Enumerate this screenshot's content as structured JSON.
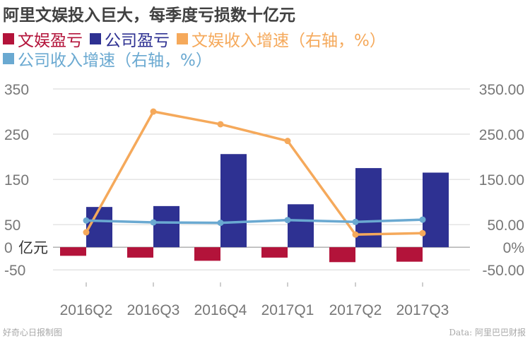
{
  "title": "阿里文娱投入巨大，每季度亏损数十亿元",
  "footer": {
    "credit": "好奇心日报制图",
    "source": "Data: 阿里巴巴财报"
  },
  "colors": {
    "wenyu_loss": "#b3133a",
    "company_loss": "#2e3192",
    "wenyu_growth": "#f5a95b",
    "company_growth": "#6aa9d1",
    "grid": "#d6d6d6",
    "tick_text": "#777777"
  },
  "chart_data": {
    "type": "bar",
    "categories": [
      "2016Q2",
      "2016Q3",
      "2016Q4",
      "2017Q1",
      "2017Q2",
      "2017Q3"
    ],
    "series": [
      {
        "name": "文娱盈亏",
        "kind": "bar",
        "axis": "left",
        "color": "#b3133a",
        "values": [
          -19,
          -23,
          -30,
          -23,
          -33,
          -32
        ]
      },
      {
        "name": "公司盈亏",
        "kind": "bar",
        "axis": "left",
        "color": "#2e3192",
        "values": [
          89,
          91,
          206,
          95,
          175,
          165
        ]
      },
      {
        "name": "文娱收入增速（右轴，%）",
        "kind": "line",
        "axis": "right",
        "color": "#f5a95b",
        "values": [
          33,
          300,
          272,
          235,
          28,
          31
        ]
      },
      {
        "name": "公司收入增速（右轴，%）",
        "kind": "line",
        "axis": "right",
        "color": "#6aa9d1",
        "values": [
          59,
          55,
          54,
          60,
          56,
          61
        ]
      }
    ],
    "y_left": {
      "ylim": [
        -70,
        350
      ],
      "ticks": [
        "350",
        "250",
        "150",
        "50",
        "0",
        "-50"
      ],
      "tick_values": [
        350,
        250,
        150,
        50,
        0,
        -50
      ],
      "unit": "亿元"
    },
    "y_right": {
      "ylim": [
        -70,
        350
      ],
      "ticks": [
        "350.00",
        "250.00",
        "150.00",
        "50.00",
        "0%",
        "-50.00"
      ],
      "tick_values": [
        350,
        250,
        150,
        50,
        0,
        -50
      ]
    },
    "grid": true
  }
}
